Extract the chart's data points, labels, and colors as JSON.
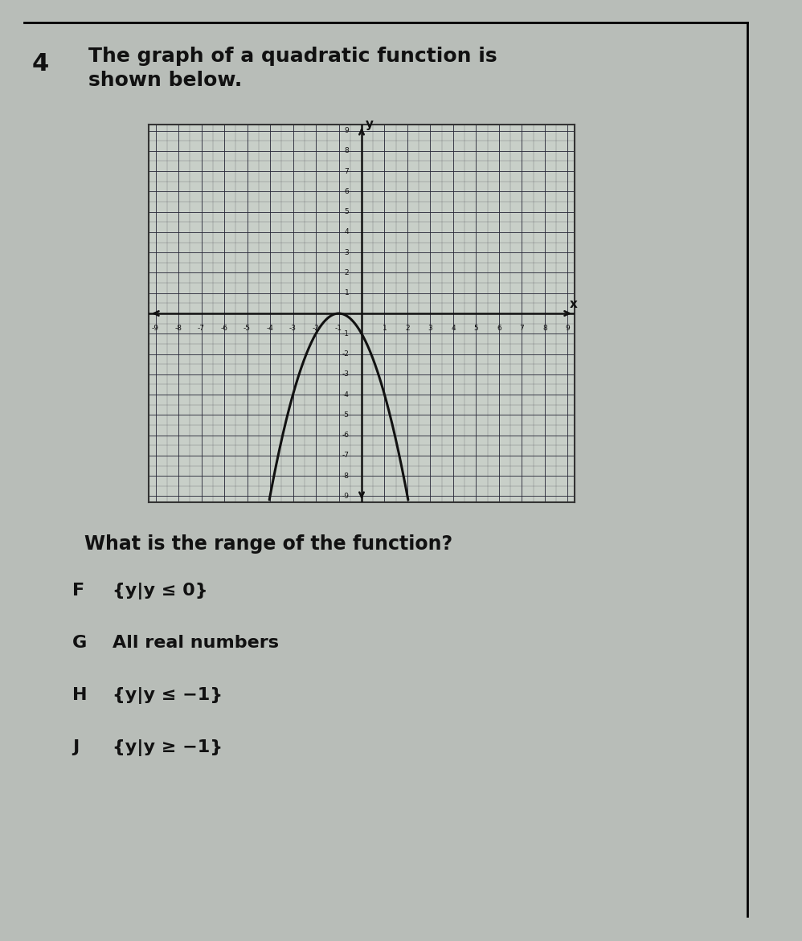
{
  "title_number": "4",
  "title_text": "The graph of a quadratic function is\nshown below.",
  "question": "What is the range of the function?",
  "choices": [
    [
      "F",
      "{y|y ≤ 0}"
    ],
    [
      "G",
      "All real numbers"
    ],
    [
      "H",
      "{y|y ≤ −1}"
    ],
    [
      "J",
      "{y|y ≥ −1}"
    ]
  ],
  "graph": {
    "xmin": -9,
    "xmax": 9,
    "ymin": -9,
    "ymax": 9,
    "xlabel": "x",
    "ylabel": "y"
  },
  "page_bg": "#b8bdb8",
  "graph_bg": "#c8cfc8",
  "grid_color": "#2a2a3a",
  "curve_color": "#111111",
  "axis_color": "#111111",
  "text_color": "#111111",
  "border_color": "#333333"
}
